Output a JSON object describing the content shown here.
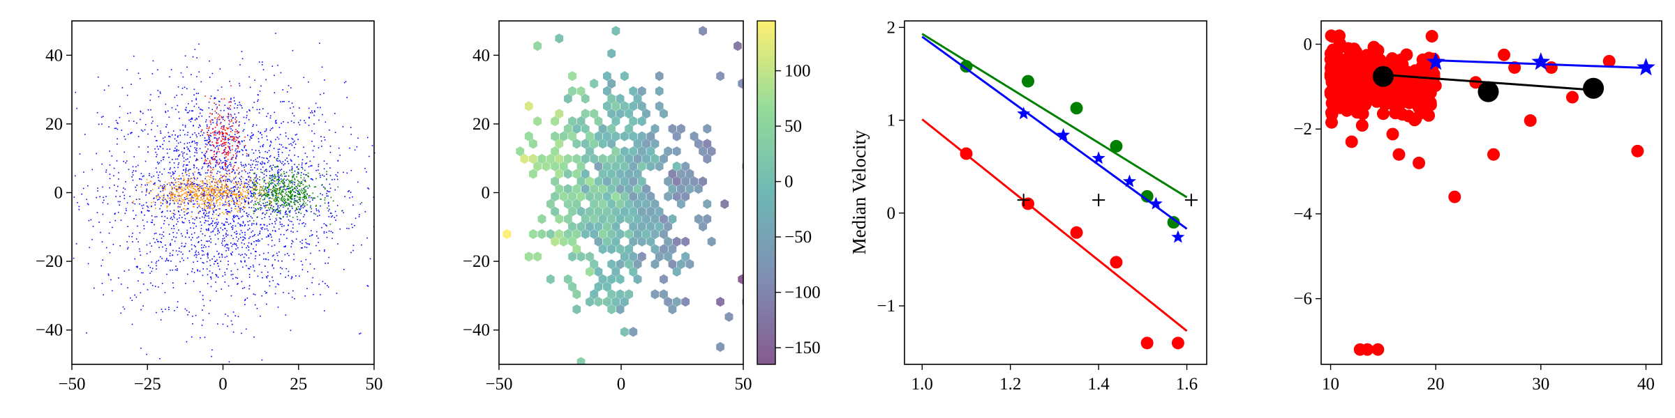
{
  "chart_data": [
    {
      "type": "scatter",
      "panel": "galaxy-scatter",
      "xlim": [
        -50,
        50
      ],
      "ylim": [
        -50,
        50
      ],
      "xticks": [
        "−50",
        "−25",
        "0",
        "25",
        "50"
      ],
      "xtick_values": [
        -50,
        -25,
        0,
        25,
        50
      ],
      "yticks": [
        "40",
        "20",
        "0",
        "−20",
        "−40"
      ],
      "ytick_values": [
        40,
        20,
        0,
        -20,
        -40
      ],
      "series": [
        {
          "color": "#0000ff",
          "values": {
            "x_center": 0,
            "y_center": 0,
            "spread_x": 20,
            "spread_y": 16,
            "points": 2600
          }
        },
        {
          "color": "#ff0000",
          "values": {
            "x_center": 0,
            "y_center": 15,
            "spread_x": 3,
            "spread_y": 6,
            "points": 220
          }
        },
        {
          "color": "#008000",
          "values": {
            "x_center": 20,
            "y_center": 0,
            "spread_x": 6,
            "spread_y": 3,
            "points": 500
          }
        },
        {
          "color": "#ff8c00",
          "values": {
            "x_center": -5,
            "y_center": 0,
            "spread_x": 9,
            "spread_y": 2.5,
            "points": 600
          }
        }
      ]
    },
    {
      "type": "heatmap",
      "panel": "hexbin-median-velocity",
      "xlim": [
        -50,
        50
      ],
      "ylim": [
        -50,
        50
      ],
      "xticks": [
        "−50",
        "0",
        "50"
      ],
      "xtick_values": [
        -50,
        0,
        50
      ],
      "yticks": [
        "40",
        "20",
        "0",
        "−20",
        "−40"
      ],
      "ytick_values": [
        40,
        20,
        0,
        -20,
        -40
      ],
      "colorbar": {
        "label": "Median Velocity",
        "range": [
          -165,
          145
        ],
        "ticks": [
          "100",
          "50",
          "0",
          "−50",
          "−100",
          "−150"
        ],
        "tick_values": [
          100,
          50,
          0,
          -50,
          -100,
          -150
        ],
        "colormap": "viridis"
      },
      "gradient": {
        "value_at_x_minus_50": 110,
        "value_at_x_plus_50": -130
      }
    },
    {
      "type": "line",
      "panel": "magnitude-fits",
      "xlim": [
        0.96,
        1.645
      ],
      "ylim": [
        -1.63,
        2.07
      ],
      "xticks": [
        "1.0",
        "1.2",
        "1.4",
        "1.6"
      ],
      "xtick_values": [
        1.0,
        1.2,
        1.4,
        1.6
      ],
      "yticks": [
        "2",
        "1",
        "0",
        "−1"
      ],
      "ytick_values": [
        2,
        1,
        0,
        -1
      ],
      "series": [
        {
          "color": "#008000",
          "marker": "circle",
          "points": [
            [
              1.1,
              1.58
            ],
            [
              1.24,
              1.42
            ],
            [
              1.35,
              1.13
            ],
            [
              1.44,
              0.72
            ],
            [
              1.51,
              0.18
            ],
            [
              1.57,
              -0.1
            ]
          ],
          "fit": [
            [
              1.0,
              1.93
            ],
            [
              1.6,
              0.17
            ]
          ]
        },
        {
          "color": "#0000ff",
          "marker": "star",
          "points": [
            [
              1.23,
              1.07
            ],
            [
              1.32,
              0.84
            ],
            [
              1.4,
              0.59
            ],
            [
              1.47,
              0.34
            ],
            [
              1.53,
              0.1
            ],
            [
              1.58,
              -0.26
            ]
          ],
          "fit": [
            [
              1.0,
              1.9
            ],
            [
              1.6,
              -0.17
            ]
          ]
        },
        {
          "color": "#ff0000",
          "marker": "circle",
          "points": [
            [
              1.1,
              0.64
            ],
            [
              1.24,
              0.1
            ],
            [
              1.35,
              -0.21
            ],
            [
              1.44,
              -0.53
            ],
            [
              1.51,
              -1.4
            ],
            [
              1.58,
              -1.4
            ]
          ],
          "fit": [
            [
              1.0,
              1.01
            ],
            [
              1.6,
              -1.27
            ]
          ]
        },
        {
          "color": "#000000",
          "marker": "plus",
          "points": [
            [
              1.23,
              0.14
            ],
            [
              1.4,
              0.14
            ],
            [
              1.61,
              0.14
            ]
          ]
        }
      ]
    },
    {
      "type": "scatter",
      "panel": "red-scatter-with-trends",
      "xlim": [
        9.1,
        41.5
      ],
      "ylim": [
        -7.55,
        0.55
      ],
      "xticks": [
        "10",
        "20",
        "30",
        "40"
      ],
      "xtick_values": [
        10,
        20,
        30,
        40
      ],
      "yticks": [
        "0",
        "−2",
        "−4",
        "−6"
      ],
      "ytick_values": [
        0,
        -2,
        -4,
        -6
      ],
      "series": [
        {
          "color": "#ff0000",
          "marker": "circle",
          "values": {
            "cluster_x": [
              10,
              20
            ],
            "cluster_y": [
              -2.5,
              0.2
            ],
            "points": 260
          }
        },
        {
          "color": "#ff0000",
          "marker": "circle",
          "points": [
            [
              10.2,
              0.18
            ],
            [
              12,
              -2.3
            ],
            [
              16.5,
              -2.6
            ],
            [
              18.4,
              -2.8
            ],
            [
              21.8,
              -3.6
            ],
            [
              25.5,
              -2.6
            ],
            [
              29,
              -1.8
            ],
            [
              31,
              -0.55
            ],
            [
              33,
              -1.25
            ],
            [
              36.5,
              -0.4
            ],
            [
              39.2,
              -2.52
            ],
            [
              12.8,
              -7.2
            ],
            [
              13.5,
              -7.2
            ],
            [
              14.5,
              -7.2
            ],
            [
              26.5,
              -0.25
            ],
            [
              27.5,
              -0.55
            ],
            [
              23.8,
              -0.9
            ]
          ]
        },
        {
          "color": "#0000ff",
          "marker": "star",
          "points": [
            [
              20,
              -0.42
            ],
            [
              30,
              -0.42
            ],
            [
              40,
              -0.55
            ]
          ],
          "fit": [
            [
              20,
              -0.38
            ],
            [
              40,
              -0.56
            ]
          ]
        },
        {
          "color": "#000000",
          "marker": "circle",
          "points": [
            [
              15,
              -0.76
            ],
            [
              25,
              -1.12
            ],
            [
              35,
              -1.04
            ]
          ],
          "fit": [
            [
              15,
              -0.72
            ],
            [
              35,
              -1.08
            ]
          ]
        }
      ]
    }
  ]
}
